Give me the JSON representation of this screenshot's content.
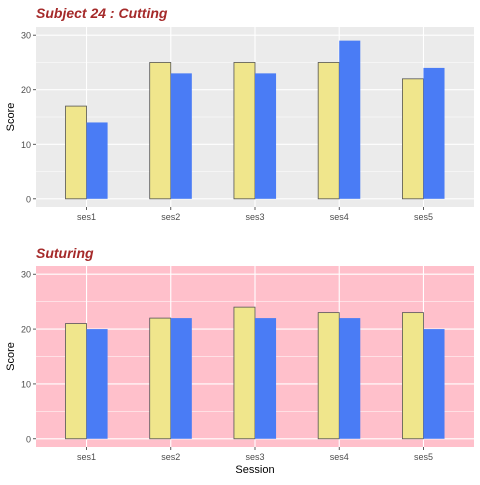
{
  "chart_data": [
    {
      "type": "bar",
      "title": "Subject 24 : Cutting",
      "xlabel": "",
      "ylabel": "Score",
      "categories": [
        "ses1",
        "ses2",
        "ses3",
        "ses4",
        "ses5"
      ],
      "series": [
        {
          "values": [
            17,
            25,
            25,
            25,
            22
          ],
          "color": "#f0e68c"
        },
        {
          "values": [
            14,
            23,
            23,
            29,
            24
          ],
          "color": "#4a7cf5"
        }
      ],
      "ylim": [
        -1.5,
        31.5
      ],
      "yticks": [
        0,
        10,
        20,
        30
      ],
      "panel_background": "#ebebeb",
      "grid": true,
      "legend": "none"
    },
    {
      "type": "bar",
      "title": "Suturing",
      "xlabel": "Session",
      "ylabel": "Score",
      "categories": [
        "ses1",
        "ses2",
        "ses3",
        "ses4",
        "ses5"
      ],
      "series": [
        {
          "values": [
            21,
            22,
            24,
            23,
            23
          ],
          "color": "#f0e68c"
        },
        {
          "values": [
            20,
            22,
            22,
            22,
            20
          ],
          "color": "#4a7cf5"
        }
      ],
      "ylim": [
        -1.5,
        31.5
      ],
      "yticks": [
        0,
        10,
        20,
        30
      ],
      "panel_background": "#ffc0cb",
      "grid": true,
      "legend": "none"
    }
  ],
  "colors": {
    "title": "#a52a2a",
    "bar_outline": "#555555",
    "grid": "#ffffff",
    "text": "#333333"
  }
}
